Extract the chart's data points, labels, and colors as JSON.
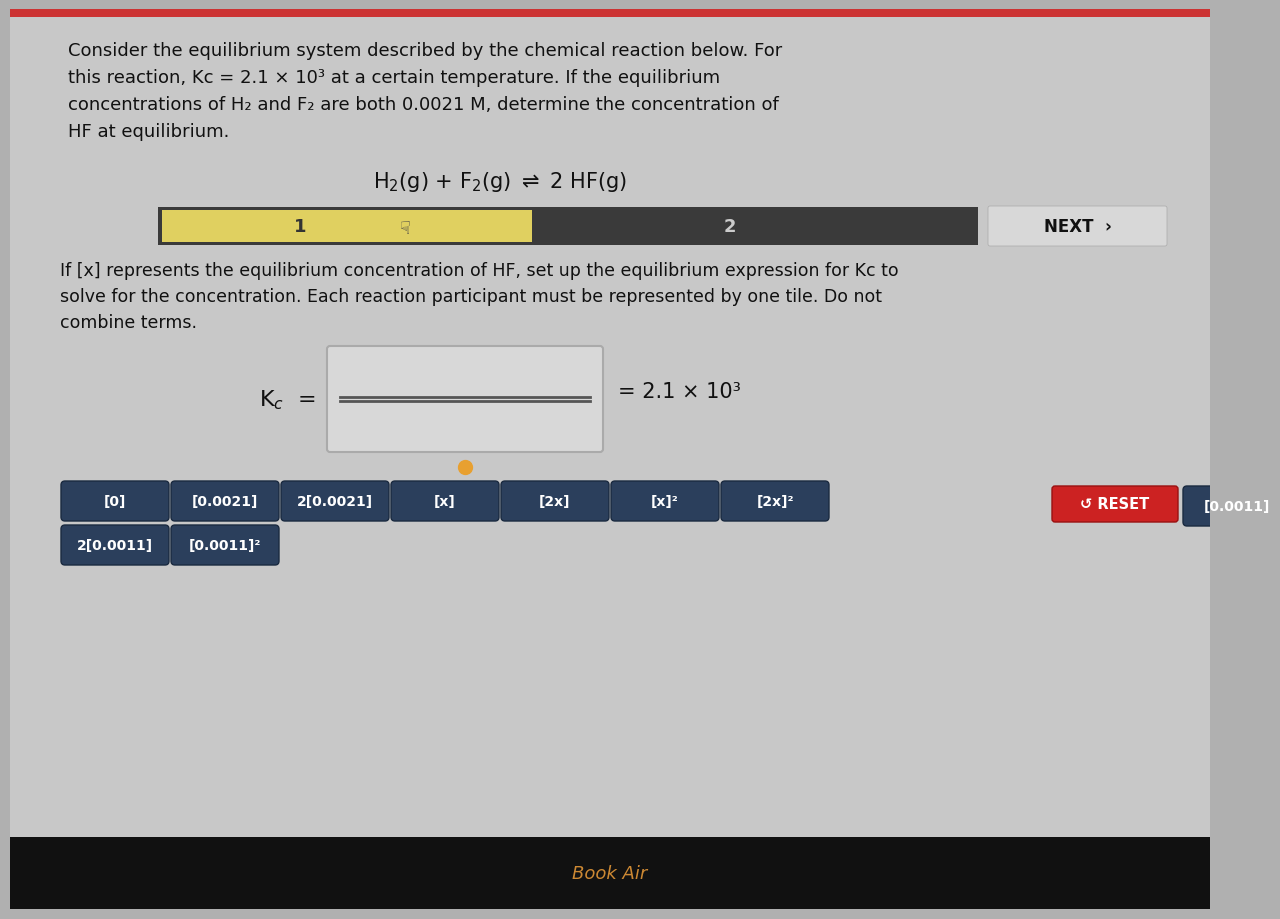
{
  "bg_outer": "#b0b0b0",
  "bg_main": "#cccccc",
  "top_red_strip": "#cc3333",
  "title_lines": [
    "Consider the equilibrium system described by the chemical reaction below. For",
    "this reaction, Kc = 2.1 × 10³ at a certain temperature. If the equilibrium",
    "concentrations of H₂ and F₂ are both 0.0021 M, determine the concentration of",
    "HF at equilibrium."
  ],
  "reaction": "H₂(g) + F₂(g) ⇌ 2 HF(g)",
  "progress_dark": "#3a3a3a",
  "progress_yellow": "#e0d060",
  "step1": "1",
  "step2": "2",
  "next_text": "NEXT  ›",
  "instr_lines": [
    "If [x] represents the equilibrium concentration of HF, set up the equilibrium expression for Kc to",
    "solve for the concentration. Each reaction participant must be represented by one tile. Do not",
    "combine terms."
  ],
  "kc_eq_text": "= 2.1 × 10³",
  "reset_text": "↺ RESET",
  "reset_color": "#cc2222",
  "dot_color": "#e8a030",
  "tile_bg": "#2b3f5c",
  "tile_fg": "#ffffff",
  "tiles_row1": [
    "[0]",
    "[0.0021]",
    "2[0.0021]",
    "[x]",
    "[2x]",
    "[x]²",
    "[2x]²",
    "[0.0011]"
  ],
  "tiles_row2": [
    "2[0.0011]",
    "[0.0011]²"
  ],
  "bottom_bar_color": "#111111",
  "bottom_text": "Book Air",
  "bottom_text_color": "#cc8833"
}
